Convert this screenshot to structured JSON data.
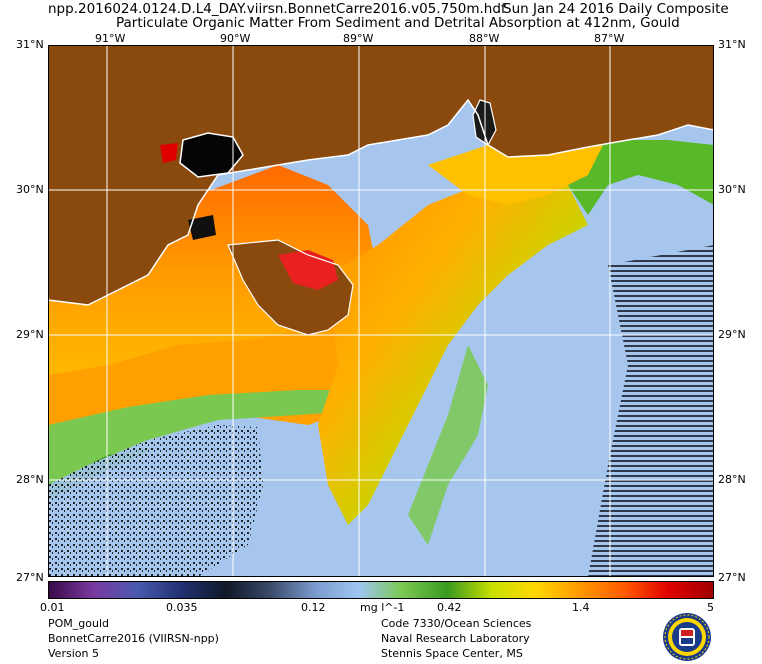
{
  "header": {
    "filename": "npp.2016024.0124.D.L4_DAY.viirsn.BonnetCarre2016.v05.750m.hdf",
    "date": "Sun Jan 24 2016 Daily Composite",
    "product": "Particulate Organic Matter From Sediment and Detrital Absorption at 412nm, Gould"
  },
  "map": {
    "lat_labels": [
      "31°N",
      "30°N",
      "29°N",
      "28°N",
      "27°N"
    ],
    "lon_labels": [
      "91°W",
      "90°W",
      "89°W",
      "88°W",
      "87°W"
    ],
    "colors": {
      "land": "#8a4a0e",
      "ocean_clear": "#a6c6ee",
      "grid": "#ffffff"
    }
  },
  "colorbar": {
    "ticks": [
      "0.01",
      "0.035",
      "0.12",
      "0.42",
      "1.4",
      "5"
    ],
    "unit": "mg l^-1",
    "palette": [
      "#3a0a4a",
      "#7a3aa0",
      "#4a5ab0",
      "#203070",
      "#101828",
      "#3a4a6a",
      "#7a9acd",
      "#9ec6f2",
      "#7ac850",
      "#3a9a20",
      "#c8e000",
      "#ffd800",
      "#ff9800",
      "#ff5a00",
      "#e00000",
      "#a00000"
    ]
  },
  "footer": {
    "left": [
      "POM_gould",
      "BonnetCarre2016 (VIIRSN-npp)",
      "Version 5"
    ],
    "right": [
      "Code 7330/Ocean Sciences",
      "Naval Research Laboratory",
      "Stennis Space Center, MS"
    ]
  },
  "seal": {
    "name": "naval-research-laboratory-seal-icon"
  }
}
